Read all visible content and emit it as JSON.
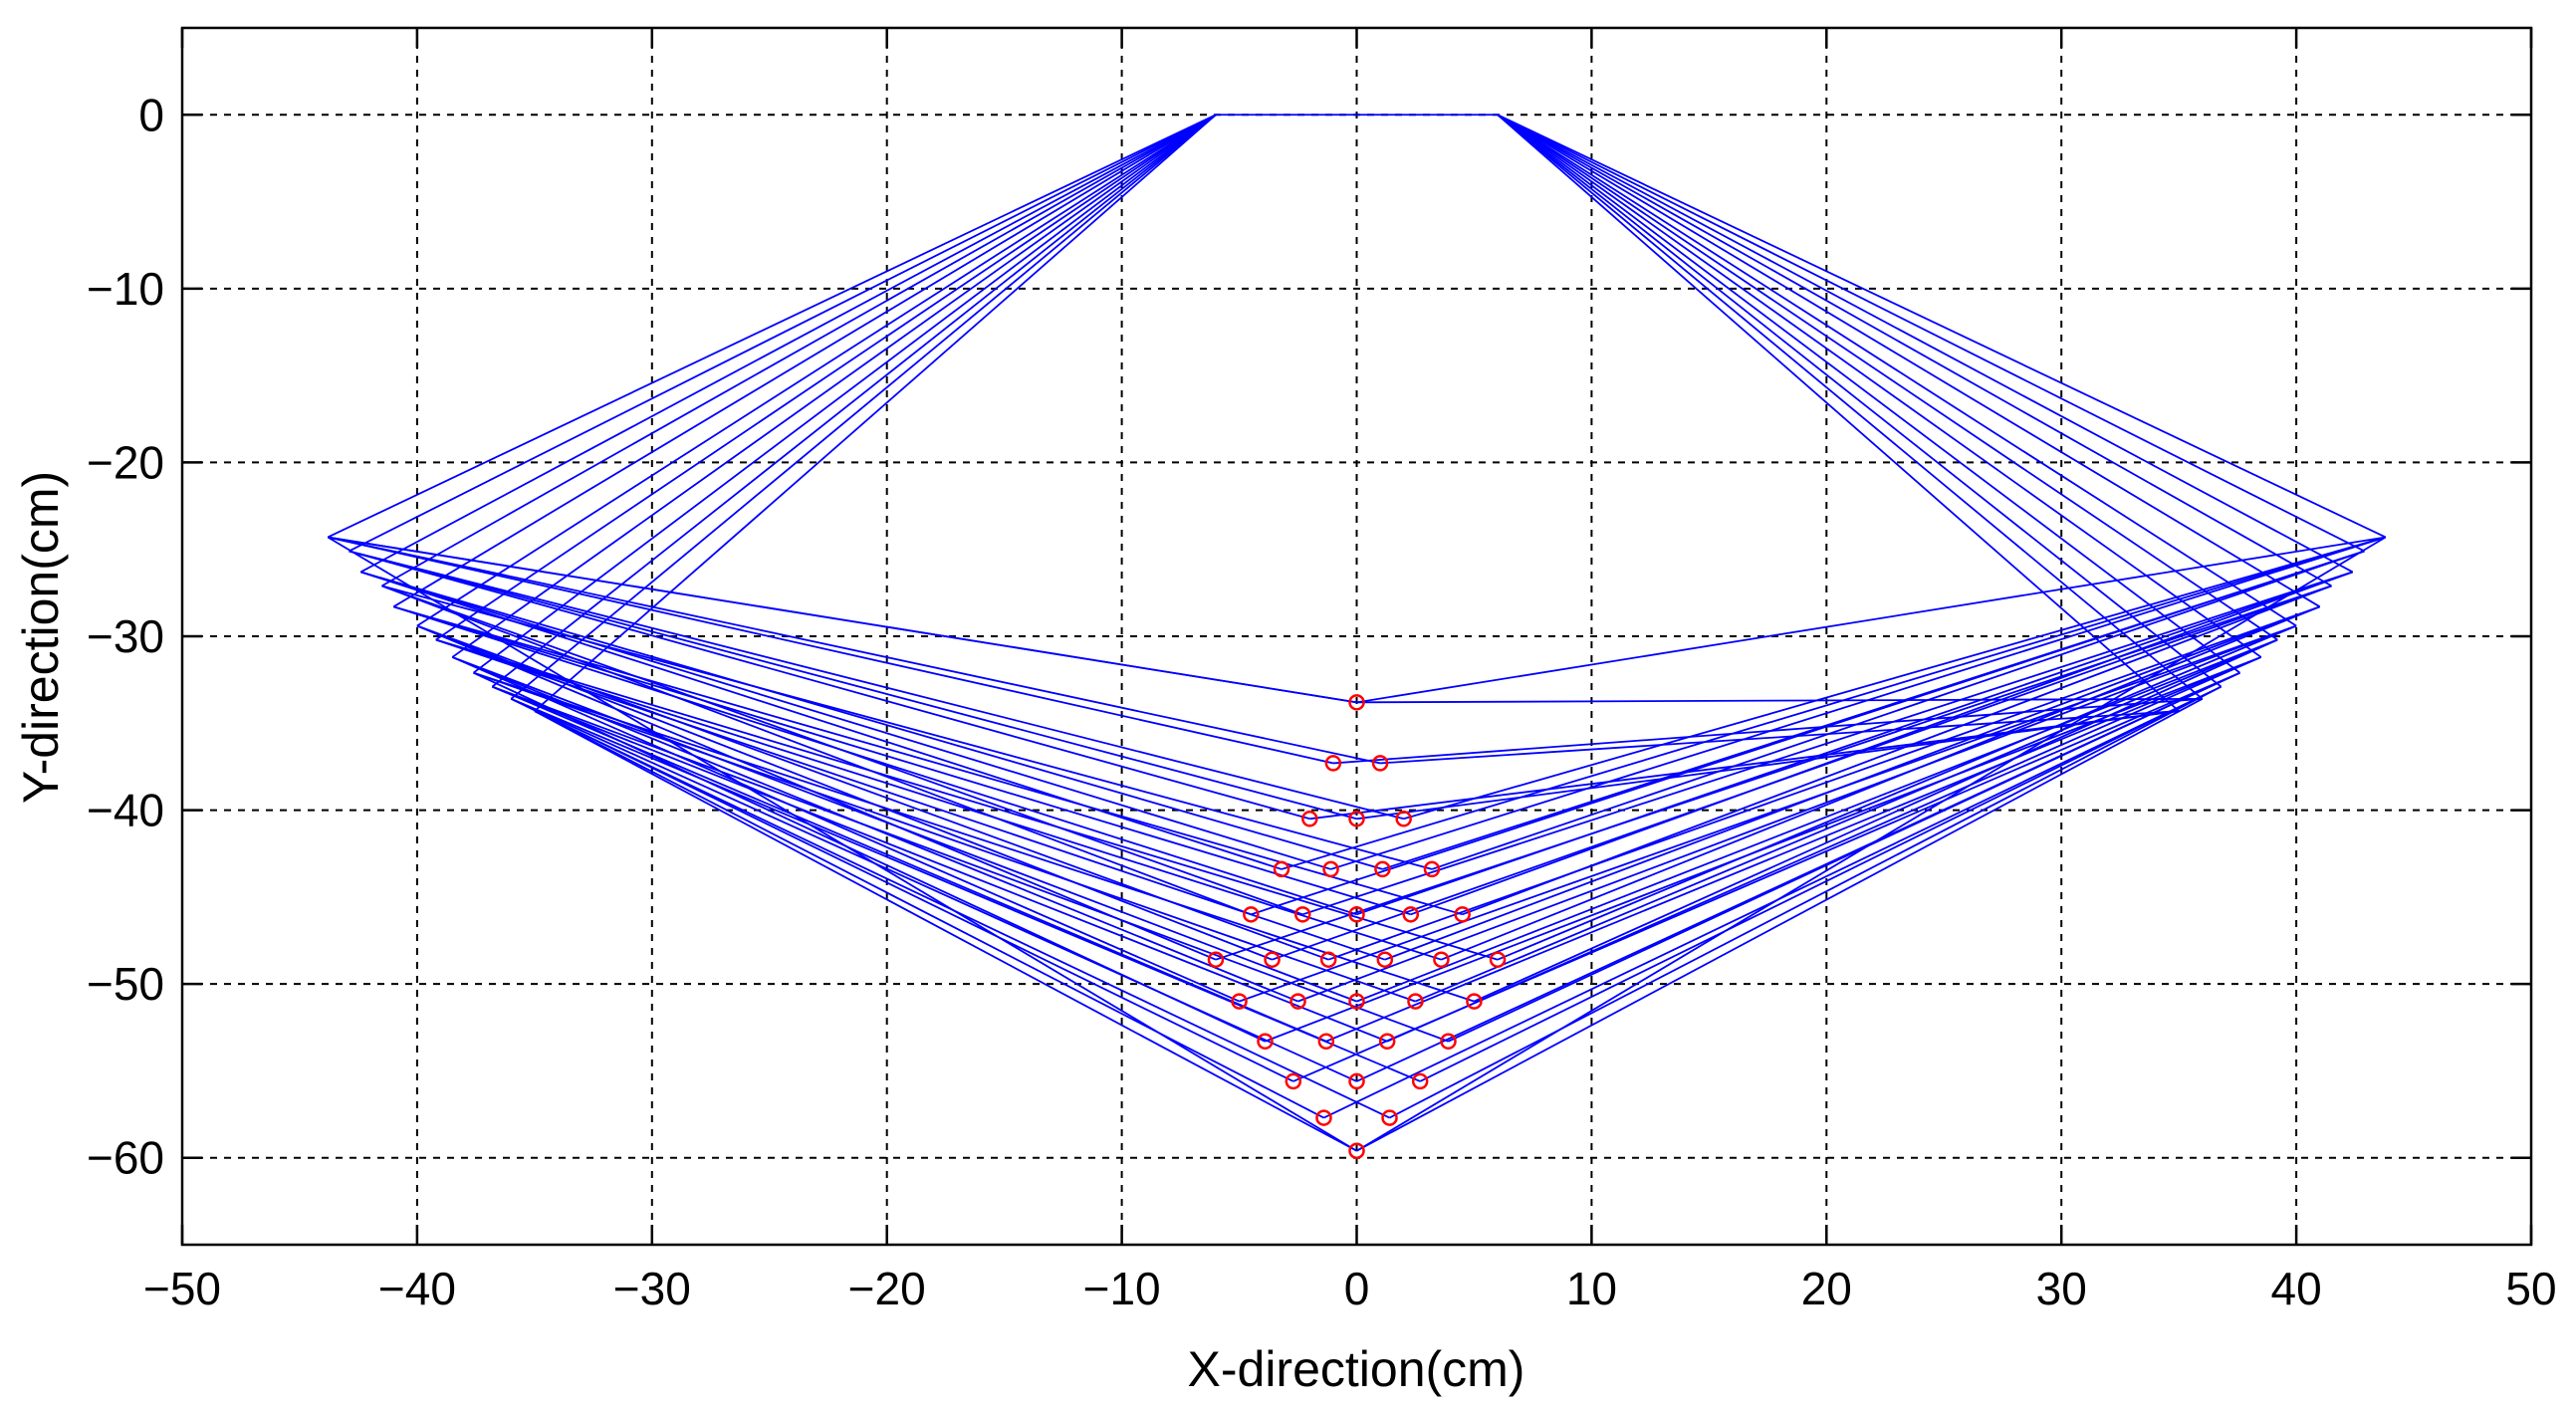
{
  "chart_data": {
    "type": "line",
    "title": "",
    "xlabel": "X-direction(cm)",
    "ylabel": "Y-direction(cm)",
    "xlim": [
      -50,
      50
    ],
    "ylim": [
      -65,
      5
    ],
    "xticks": [
      -50,
      -40,
      -30,
      -20,
      -10,
      0,
      10,
      20,
      30,
      40,
      50
    ],
    "yticks": [
      0,
      -10,
      -20,
      -30,
      -40,
      -50,
      -60
    ],
    "xtick_labels": [
      "−50",
      "−40",
      "−30",
      "−20",
      "−10",
      "0",
      "10",
      "20",
      "30",
      "40",
      "50"
    ],
    "ytick_labels": [
      "0",
      "−10",
      "−20",
      "−30",
      "−40",
      "−50",
      "−60"
    ],
    "grid": true,
    "line_color": "#0000ff",
    "marker_color": "#ff0000",
    "aperture": {
      "x": [
        -6,
        6
      ],
      "y": 0
    },
    "reflector_left": [
      [
        -43.8,
        -24.3
      ],
      [
        -42.9,
        -25.1
      ],
      [
        -42.4,
        -26.3
      ],
      [
        -41.5,
        -27.1
      ],
      [
        -41.0,
        -28.3
      ],
      [
        -40.0,
        -29.4
      ],
      [
        -39.2,
        -30.2
      ],
      [
        -38.5,
        -31.2
      ],
      [
        -37.6,
        -32.1
      ],
      [
        -36.8,
        -32.9
      ],
      [
        -36.0,
        -33.6
      ],
      [
        -35.0,
        -34.3
      ]
    ],
    "reflector_right": [
      [
        43.8,
        -24.3
      ],
      [
        42.9,
        -25.1
      ],
      [
        42.4,
        -26.3
      ],
      [
        41.5,
        -27.1
      ],
      [
        41.0,
        -28.3
      ],
      [
        40.0,
        -29.4
      ],
      [
        39.2,
        -30.2
      ],
      [
        38.5,
        -31.2
      ],
      [
        37.6,
        -32.1
      ],
      [
        36.8,
        -32.9
      ],
      [
        36.0,
        -33.6
      ],
      [
        35.0,
        -34.3
      ]
    ],
    "points": [
      [
        0,
        -33.8
      ],
      [
        -1,
        -37.3
      ],
      [
        1,
        -37.3
      ],
      [
        -2,
        -40.5
      ],
      [
        0,
        -40.5
      ],
      [
        2,
        -40.5
      ],
      [
        -3.2,
        -43.4
      ],
      [
        -1.1,
        -43.4
      ],
      [
        1.1,
        -43.4
      ],
      [
        3.2,
        -43.4
      ],
      [
        -4.5,
        -46.0
      ],
      [
        -2.3,
        -46.0
      ],
      [
        0,
        -46.0
      ],
      [
        2.3,
        -46.0
      ],
      [
        4.5,
        -46.0
      ],
      [
        -6,
        -48.6
      ],
      [
        -3.6,
        -48.6
      ],
      [
        -1.2,
        -48.6
      ],
      [
        1.2,
        -48.6
      ],
      [
        3.6,
        -48.6
      ],
      [
        6,
        -48.6
      ],
      [
        -5,
        -51.0
      ],
      [
        -2.5,
        -51.0
      ],
      [
        0,
        -51.0
      ],
      [
        2.5,
        -51.0
      ],
      [
        5,
        -51.0
      ],
      [
        -3.9,
        -53.3
      ],
      [
        -1.3,
        -53.3
      ],
      [
        1.3,
        -53.3
      ],
      [
        3.9,
        -53.3
      ],
      [
        -2.7,
        -55.6
      ],
      [
        0,
        -55.6
      ],
      [
        2.7,
        -55.6
      ],
      [
        -1.4,
        -57.7
      ],
      [
        1.4,
        -57.7
      ],
      [
        0,
        -59.6
      ]
    ]
  }
}
